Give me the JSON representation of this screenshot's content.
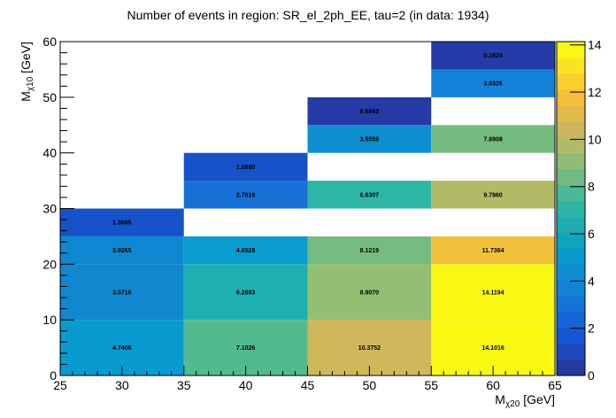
{
  "chart_data": {
    "type": "heatmap",
    "title": "Number of events in region: SR_el_2ph_EE, tau=2 (in data: 1934)",
    "xlabel": {
      "main": "M",
      "sub": "χ20",
      "unit": " [GeV]"
    },
    "ylabel": {
      "main": "M",
      "sub": "χ10",
      "unit": " [GeV]"
    },
    "xlim": [
      25,
      65
    ],
    "ylim": [
      0,
      60
    ],
    "zlim": [
      0,
      14.14
    ],
    "x_ticks": [
      "25",
      "30",
      "35",
      "40",
      "45",
      "50",
      "55",
      "60",
      "65"
    ],
    "y_ticks": [
      "0",
      "10",
      "20",
      "30",
      "40",
      "50",
      "60"
    ],
    "z_ticks": [
      "0",
      "2",
      "4",
      "6",
      "8",
      "10",
      "12",
      "14"
    ],
    "cells": [
      {
        "x": [
          25,
          35
        ],
        "y": [
          0,
          10
        ],
        "value": "4.7406",
        "color": "#089bd0"
      },
      {
        "x": [
          25,
          35
        ],
        "y": [
          10,
          20
        ],
        "value": "3.5716",
        "color": "#0f88d0"
      },
      {
        "x": [
          25,
          35
        ],
        "y": [
          20,
          25
        ],
        "value": "3.9265",
        "color": "#0e88d0"
      },
      {
        "x": [
          25,
          35
        ],
        "y": [
          25,
          30
        ],
        "value": "1.3695",
        "color": "#1652ca"
      },
      {
        "x": [
          35,
          45
        ],
        "y": [
          0,
          10
        ],
        "value": "7.1026",
        "color": "#52ba8f"
      },
      {
        "x": [
          35,
          45
        ],
        "y": [
          10,
          20
        ],
        "value": "6.2693",
        "color": "#1fb0b2"
      },
      {
        "x": [
          35,
          45
        ],
        "y": [
          20,
          25
        ],
        "value": "4.8528",
        "color": "#089dcd"
      },
      {
        "x": [
          35,
          45
        ],
        "y": [
          30,
          35
        ],
        "value": "2.7816",
        "color": "#1670d6"
      },
      {
        "x": [
          35,
          45
        ],
        "y": [
          35,
          40
        ],
        "value": "1.0880",
        "color": "#1752c9"
      },
      {
        "x": [
          45,
          55
        ],
        "y": [
          0,
          10
        ],
        "value": "10.3752",
        "color": "#d0b85a"
      },
      {
        "x": [
          45,
          55
        ],
        "y": [
          10,
          20
        ],
        "value": "8.9070",
        "color": "#94bf72"
      },
      {
        "x": [
          45,
          55
        ],
        "y": [
          20,
          25
        ],
        "value": "8.1219",
        "color": "#75bc80"
      },
      {
        "x": [
          45,
          55
        ],
        "y": [
          30,
          35
        ],
        "value": "6.6307",
        "color": "#2db6a4"
      },
      {
        "x": [
          45,
          55
        ],
        "y": [
          40,
          45
        ],
        "value": "3.5559",
        "color": "#0f8ecf"
      },
      {
        "x": [
          45,
          55
        ],
        "y": [
          45,
          50
        ],
        "value": "0.6043",
        "color": "#263aa6"
      },
      {
        "x": [
          55,
          65
        ],
        "y": [
          0,
          10
        ],
        "value": "14.1016",
        "color": "#f8f813"
      },
      {
        "x": [
          55,
          65
        ],
        "y": [
          10,
          20
        ],
        "value": "14.1194",
        "color": "#f8f813"
      },
      {
        "x": [
          55,
          65
        ],
        "y": [
          20,
          25
        ],
        "value": "11.7364",
        "color": "#f2c13a"
      },
      {
        "x": [
          55,
          65
        ],
        "y": [
          30,
          35
        ],
        "value": "9.7860",
        "color": "#b1bb66"
      },
      {
        "x": [
          55,
          65
        ],
        "y": [
          40,
          45
        ],
        "value": "7.8908",
        "color": "#74bb80"
      },
      {
        "x": [
          55,
          65
        ],
        "y": [
          50,
          55
        ],
        "value": "3.0326",
        "color": "#1282d8"
      },
      {
        "x": [
          55,
          65
        ],
        "y": [
          55,
          60
        ],
        "value": "0.1624",
        "color": "#253ca6"
      }
    ],
    "palette": [
      "#253aa0",
      "#1f48be",
      "#1656d6",
      "#1466d8",
      "#1373d8",
      "#1383d6",
      "#0f8ed2",
      "#0a99cc",
      "#0da5c0",
      "#1fadb0",
      "#2cb4a4",
      "#4bb896",
      "#70bb84",
      "#90bc75",
      "#b1bb66",
      "#ccb55c",
      "#e1bb48",
      "#f3bf3c",
      "#fbcf2c",
      "#f8e424",
      "#f8f813"
    ],
    "grid": false,
    "legend": "colorbar-right"
  }
}
